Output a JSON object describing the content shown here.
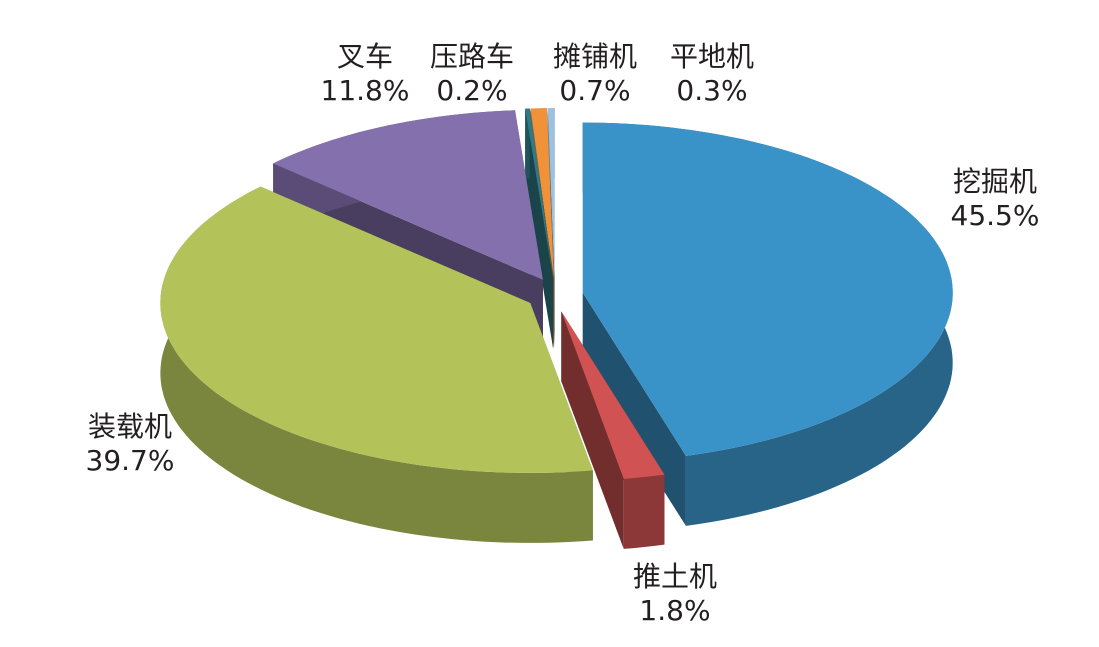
{
  "chart_data": {
    "type": "pie3d",
    "categories": [
      "挖掘机",
      "推土机",
      "装载机",
      "叉车",
      "压路车",
      "摊铺机",
      "平地机"
    ],
    "values": [
      45.5,
      1.8,
      39.7,
      11.8,
      0.2,
      0.7,
      0.3
    ],
    "value_labels": [
      "45.5%",
      "1.8%",
      "39.7%",
      "11.8%",
      "0.2%",
      "0.7%",
      "0.3%"
    ],
    "colors": [
      "#3a93c8",
      "#d05252",
      "#b3c35a",
      "#8470ad",
      "#2f7a86",
      "#f0923a",
      "#9cc2e0"
    ]
  }
}
